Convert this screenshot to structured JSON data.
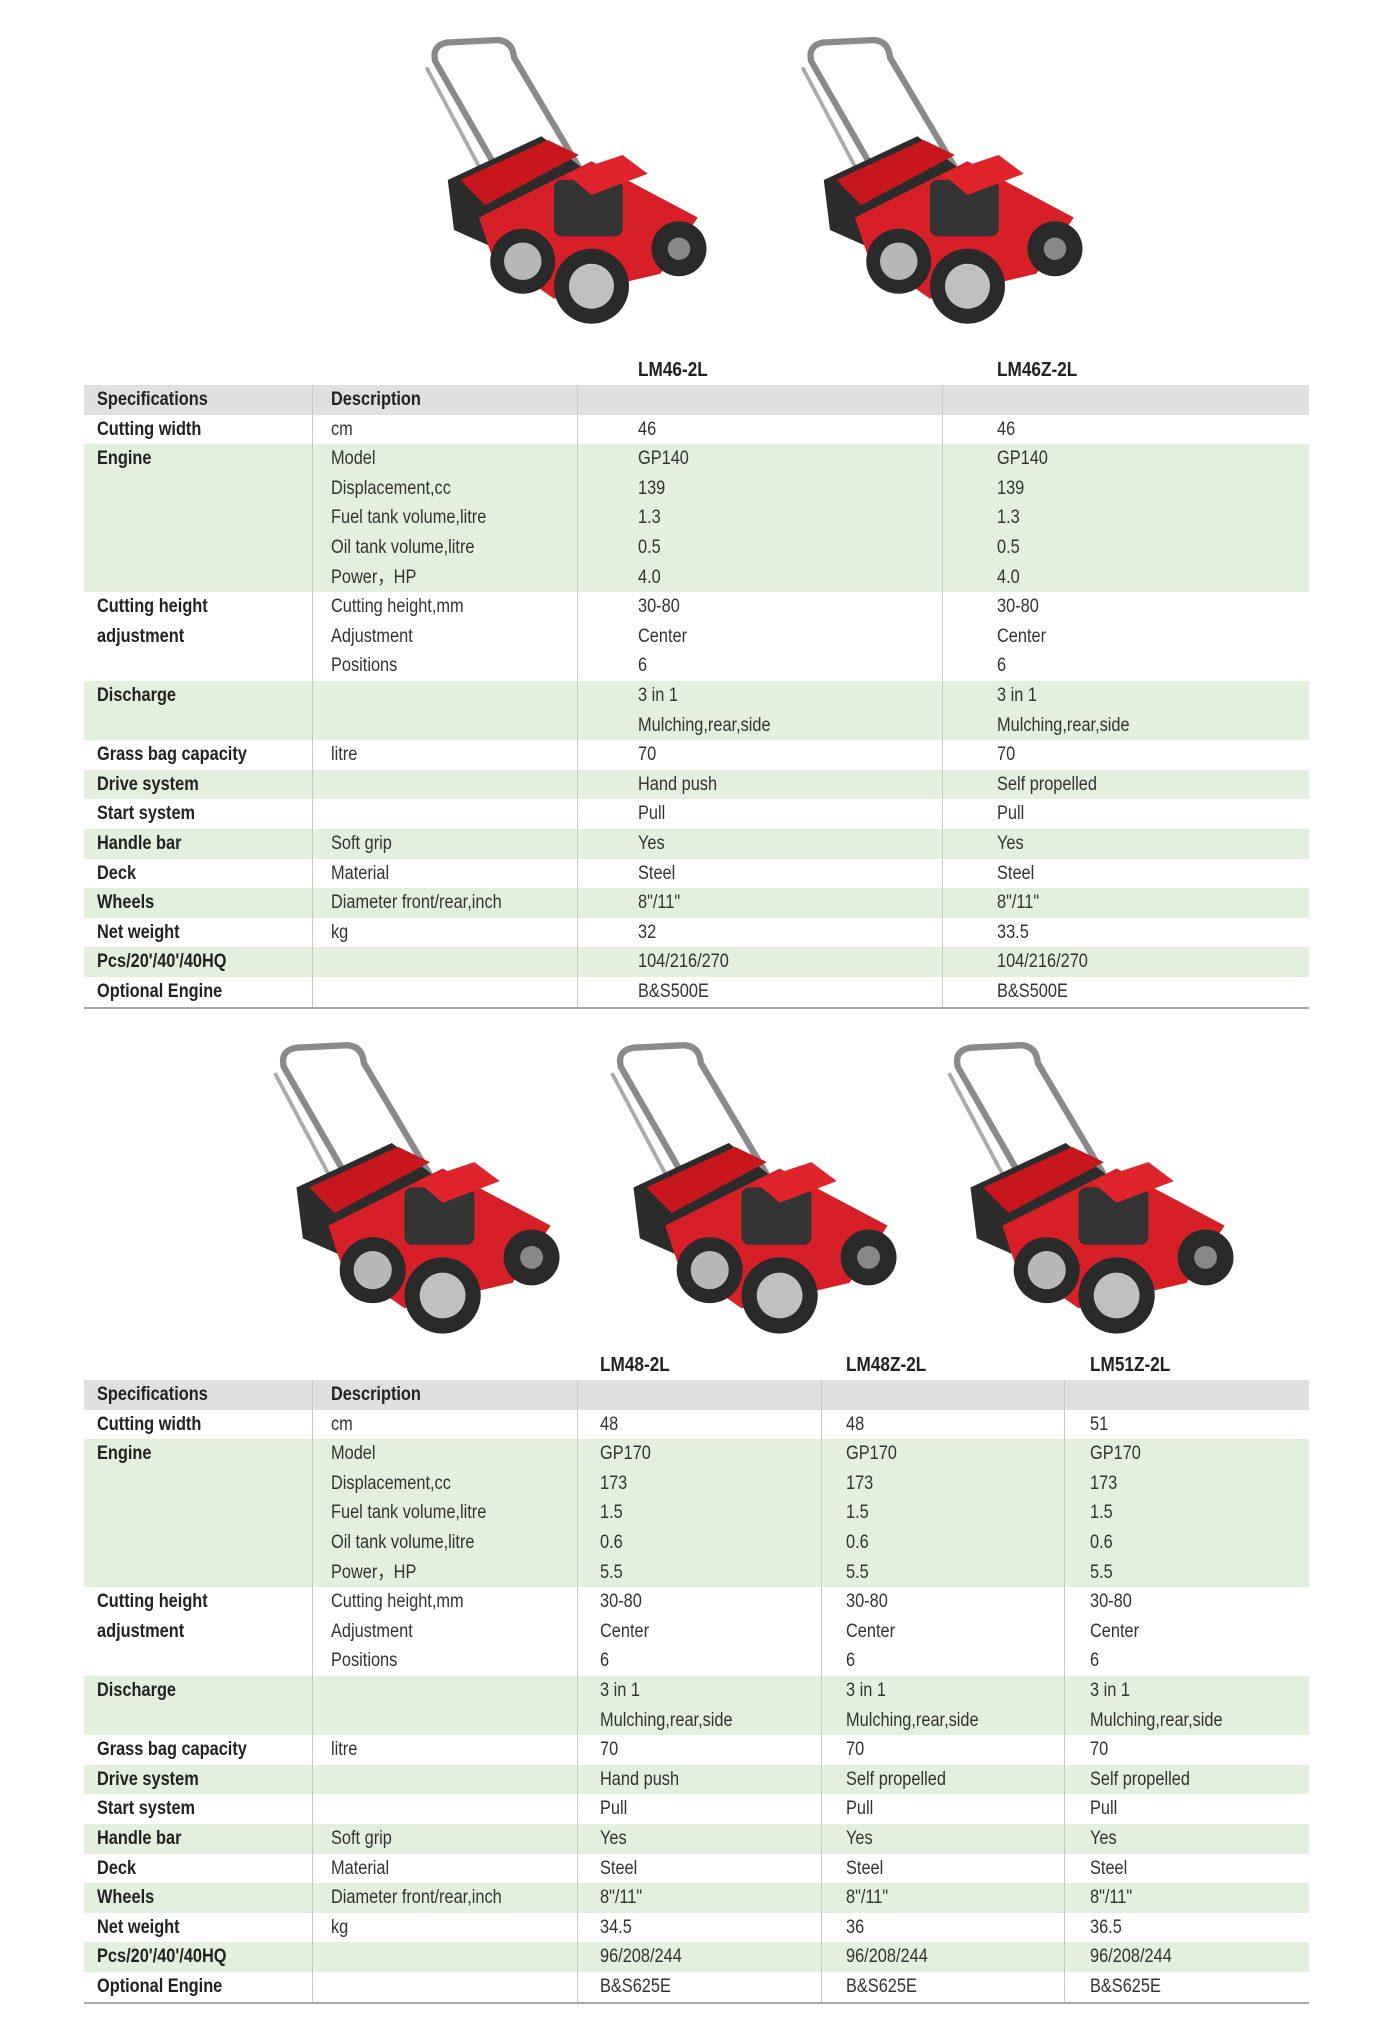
{
  "tables": [
    {
      "models": [
        "LM46-2L",
        "LM46Z-2L"
      ],
      "header": [
        "Specifications",
        "Description"
      ],
      "groups": [
        {
          "spec": [
            "Cutting width"
          ],
          "rows": [
            {
              "desc": "cm",
              "values": [
                "46",
                "46"
              ]
            }
          ]
        },
        {
          "spec": [
            "Engine"
          ],
          "rows": [
            {
              "desc": "Model",
              "values": [
                "GP140",
                "GP140"
              ]
            },
            {
              "desc": "Displacement,cc",
              "values": [
                "139",
                "139"
              ]
            },
            {
              "desc": "Fuel tank volume,litre",
              "values": [
                "1.3",
                "1.3"
              ]
            },
            {
              "desc": "Oil tank volume,litre",
              "values": [
                "0.5",
                "0.5"
              ]
            },
            {
              "desc": "Power，HP",
              "values": [
                "4.0",
                "4.0"
              ]
            }
          ]
        },
        {
          "spec": [
            "Cutting height",
            "adjustment"
          ],
          "rows": [
            {
              "desc": "Cutting height,mm",
              "values": [
                "30-80",
                "30-80"
              ]
            },
            {
              "desc": "Adjustment",
              "values": [
                "Center",
                "Center"
              ]
            },
            {
              "desc": "Positions",
              "values": [
                "6",
                "6"
              ]
            }
          ]
        },
        {
          "spec": [
            "Discharge"
          ],
          "rows": [
            {
              "values": [
                "3 in 1",
                "3 in 1"
              ]
            },
            {
              "values": [
                "Mulching,rear,side",
                "Mulching,rear,side"
              ]
            }
          ]
        },
        {
          "spec": [
            "Grass bag capacity"
          ],
          "rows": [
            {
              "desc": "litre",
              "values": [
                "70",
                "70"
              ]
            }
          ]
        },
        {
          "spec": [
            "Drive system"
          ],
          "rows": [
            {
              "values": [
                "Hand push",
                "Self propelled"
              ]
            }
          ]
        },
        {
          "spec": [
            "Start system"
          ],
          "rows": [
            {
              "values": [
                "Pull",
                "Pull"
              ]
            }
          ]
        },
        {
          "spec": [
            "Handle bar"
          ],
          "rows": [
            {
              "desc": "Soft grip",
              "values": [
                "Yes",
                "Yes"
              ]
            }
          ]
        },
        {
          "spec": [
            "Deck"
          ],
          "rows": [
            {
              "desc": "Material",
              "values": [
                "Steel",
                "Steel"
              ]
            }
          ]
        },
        {
          "spec": [
            "Wheels"
          ],
          "rows": [
            {
              "desc": "Diameter front/rear,inch",
              "values": [
                "8\"/11\"",
                "8\"/11\""
              ]
            }
          ]
        },
        {
          "spec": [
            "Net weight"
          ],
          "rows": [
            {
              "desc": "kg",
              "values": [
                "32",
                "33.5"
              ]
            }
          ]
        },
        {
          "spec": [
            "Pcs/20'/40'/40HQ"
          ],
          "rows": [
            {
              "values": [
                "104/216/270",
                "104/216/270"
              ]
            }
          ]
        },
        {
          "spec": [
            "Optional Engine"
          ],
          "rows": [
            {
              "values": [
                "B&S500E",
                "B&S500E"
              ]
            }
          ]
        }
      ]
    },
    {
      "models": [
        "LM48-2L",
        "LM48Z-2L",
        "LM51Z-2L"
      ],
      "header": [
        "Specifications",
        "Description"
      ],
      "groups": [
        {
          "spec": [
            "Cutting width"
          ],
          "rows": [
            {
              "desc": "cm",
              "values": [
                "48",
                "48",
                "51"
              ]
            }
          ]
        },
        {
          "spec": [
            "Engine"
          ],
          "rows": [
            {
              "desc": "Model",
              "values": [
                "GP170",
                "GP170",
                "GP170"
              ]
            },
            {
              "desc": "Displacement,cc",
              "values": [
                "173",
                "173",
                "173"
              ]
            },
            {
              "desc": "Fuel tank volume,litre",
              "values": [
                "1.5",
                "1.5",
                "1.5"
              ]
            },
            {
              "desc": "Oil tank volume,litre",
              "values": [
                "0.6",
                "0.6",
                "0.6"
              ]
            },
            {
              "desc": "Power，HP",
              "values": [
                "5.5",
                "5.5",
                "5.5"
              ]
            }
          ]
        },
        {
          "spec": [
            "Cutting height",
            "adjustment"
          ],
          "rows": [
            {
              "desc": "Cutting height,mm",
              "values": [
                "30-80",
                "30-80",
                "30-80"
              ]
            },
            {
              "desc": "Adjustment",
              "values": [
                "Center",
                "Center",
                "Center"
              ]
            },
            {
              "desc": "Positions",
              "values": [
                "6",
                "6",
                "6"
              ]
            }
          ]
        },
        {
          "spec": [
            "Discharge"
          ],
          "rows": [
            {
              "values": [
                "3 in 1",
                "3 in 1",
                "3 in 1"
              ]
            },
            {
              "values": [
                "Mulching,rear,side",
                "Mulching,rear,side",
                "Mulching,rear,side"
              ]
            }
          ]
        },
        {
          "spec": [
            "Grass bag capacity"
          ],
          "rows": [
            {
              "desc": "litre",
              "values": [
                "70",
                "70",
                "70"
              ]
            }
          ]
        },
        {
          "spec": [
            "Drive system"
          ],
          "rows": [
            {
              "values": [
                "Hand push",
                "Self propelled",
                "Self propelled"
              ]
            }
          ]
        },
        {
          "spec": [
            "Start system"
          ],
          "rows": [
            {
              "values": [
                "Pull",
                "Pull",
                "Pull"
              ]
            }
          ]
        },
        {
          "spec": [
            "Handle bar"
          ],
          "rows": [
            {
              "desc": "Soft grip",
              "values": [
                "Yes",
                "Yes",
                "Yes"
              ]
            }
          ]
        },
        {
          "spec": [
            "Deck"
          ],
          "rows": [
            {
              "desc": "Material",
              "values": [
                "Steel",
                "Steel",
                "Steel"
              ]
            }
          ]
        },
        {
          "spec": [
            "Wheels"
          ],
          "rows": [
            {
              "desc": "Diameter front/rear,inch",
              "values": [
                "8\"/11\"",
                "8\"/11\"",
                "8\"/11\""
              ]
            }
          ]
        },
        {
          "spec": [
            "Net weight"
          ],
          "rows": [
            {
              "desc": "kg",
              "values": [
                "34.5",
                "36",
                "36.5"
              ]
            }
          ]
        },
        {
          "spec": [
            "Pcs/20'/40'/40HQ"
          ],
          "rows": [
            {
              "values": [
                "96/208/244",
                "96/208/244",
                "96/208/244"
              ]
            }
          ]
        },
        {
          "spec": [
            "Optional Engine"
          ],
          "rows": [
            {
              "values": [
                "B&S625E",
                "B&S625E",
                "B&S625E"
              ]
            }
          ]
        }
      ]
    }
  ]
}
